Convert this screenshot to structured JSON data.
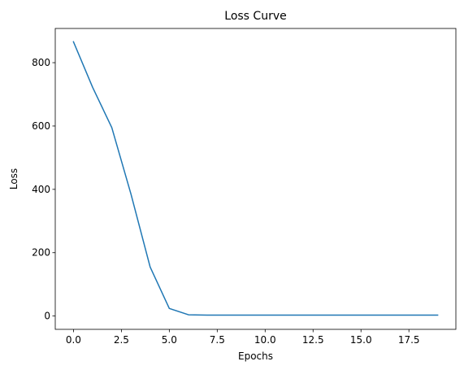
{
  "chart_data": {
    "type": "line",
    "title": "Loss Curve",
    "xlabel": "Epochs",
    "ylabel": "Loss",
    "xlim": [
      -0.95,
      19.95
    ],
    "ylim": [
      -42,
      908
    ],
    "x_ticks": [
      0.0,
      2.5,
      5.0,
      7.5,
      10.0,
      12.5,
      15.0,
      17.5
    ],
    "x_tick_labels": [
      "0.0",
      "2.5",
      "5.0",
      "7.5",
      "10.0",
      "12.5",
      "15.0",
      "17.5"
    ],
    "y_ticks": [
      0,
      200,
      400,
      600,
      800
    ],
    "y_tick_labels": [
      "0",
      "200",
      "400",
      "600",
      "800"
    ],
    "grid": false,
    "legend": "none",
    "series": [
      {
        "color": "#1f77b4",
        "x": [
          0,
          1,
          2,
          3,
          4,
          5,
          6,
          7,
          8,
          9,
          10,
          11,
          12,
          13,
          14,
          15,
          16,
          17,
          18,
          19
        ],
        "y": [
          866,
          722,
          595,
          385,
          155,
          24,
          4,
          3,
          3,
          3,
          3,
          3,
          3,
          3,
          3,
          3,
          3,
          3,
          3,
          3
        ]
      }
    ]
  }
}
